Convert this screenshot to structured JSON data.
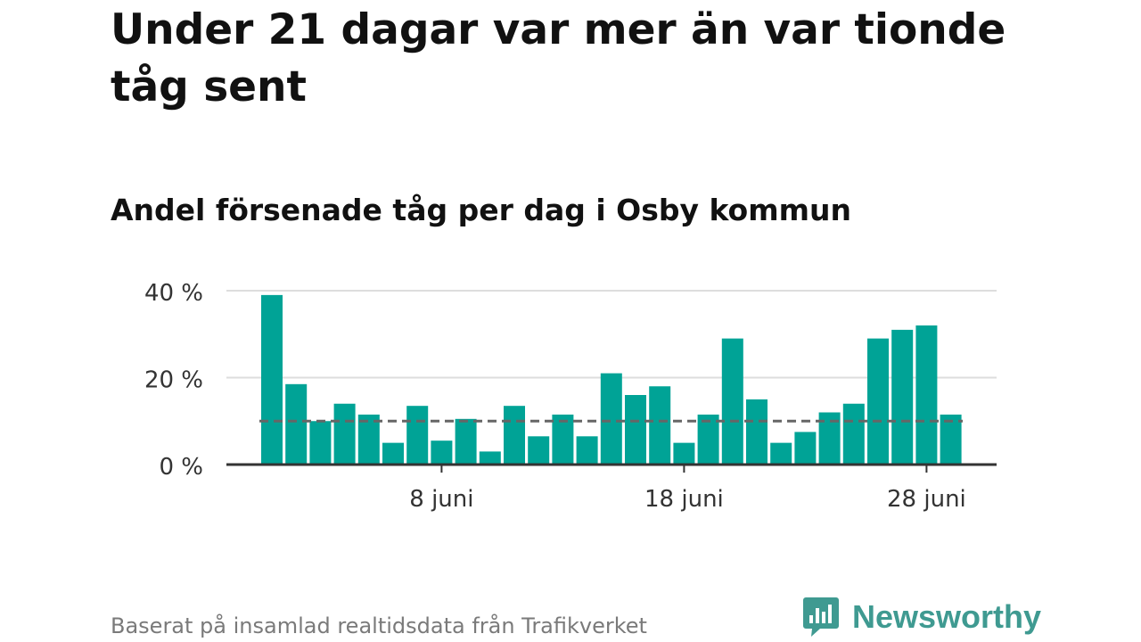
{
  "header": {
    "title": "Under 21 dagar var mer än var tionde tåg sent",
    "subtitle": "Andel försenade tåg per dag i Osby kommun"
  },
  "footer": {
    "source": "Baserat på insamlad realtidsdata från Trafikverket",
    "brand": "Newsworthy"
  },
  "colors": {
    "bar": "#00a396",
    "reference_line": "#666666",
    "grid": "#dddddd",
    "axis": "#333333",
    "brand": "#3f9a91"
  },
  "icons": {
    "brand_logo": "newsworthy-logo-icon"
  },
  "chart_data": {
    "type": "bar",
    "x": [
      "2024-06-01",
      "2024-06-02",
      "2024-06-03",
      "2024-06-04",
      "2024-06-05",
      "2024-06-06",
      "2024-06-07",
      "2024-06-08",
      "2024-06-09",
      "2024-06-10",
      "2024-06-11",
      "2024-06-12",
      "2024-06-13",
      "2024-06-14",
      "2024-06-15",
      "2024-06-16",
      "2024-06-17",
      "2024-06-18",
      "2024-06-19",
      "2024-06-20",
      "2024-06-21",
      "2024-06-22",
      "2024-06-23",
      "2024-06-24",
      "2024-06-25",
      "2024-06-26",
      "2024-06-27",
      "2024-06-28",
      "2024-06-29"
    ],
    "values": [
      39,
      18.5,
      10,
      14,
      11.5,
      5,
      13.5,
      5.5,
      10.5,
      3,
      13.5,
      6.5,
      11.5,
      6.5,
      21,
      16,
      18,
      5,
      11.5,
      29,
      15,
      5,
      7.5,
      12,
      14,
      29,
      31,
      32,
      11.5
    ],
    "reference_line": 10,
    "ylim": [
      0,
      40
    ],
    "yticks": [
      0,
      20,
      40
    ],
    "ytick_labels": [
      "0 %",
      "20 %",
      "40 %"
    ],
    "xticks": [
      "2024-06-08",
      "2024-06-18",
      "2024-06-28"
    ],
    "xtick_labels": [
      "8 juni",
      "18 juni",
      "28 juni"
    ],
    "grid": true,
    "legend": false
  }
}
